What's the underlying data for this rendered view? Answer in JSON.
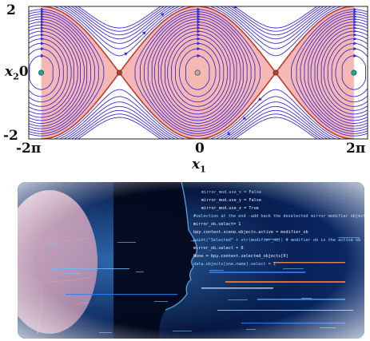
{
  "phase_plot": {
    "y_top_tick": "2",
    "y_bottom_tick": "-2",
    "y_axis_label": "x",
    "y_axis_sub": "2",
    "y_zero_tick": "0",
    "x_left_tick": "-2π",
    "x_mid_tick": "0",
    "x_right_tick": "2π",
    "x_axis_label": "x",
    "x_axis_sub": "1",
    "colors": {
      "stream": "#3b2bd6",
      "separatrix": "#c0392b",
      "fill": "#f2a6a0",
      "equilibrium": "#1aa7a0"
    }
  },
  "photo": {
    "subject": "ai-face-code-graphic",
    "code_lines": [
      "mirror_mod.use_x = False",
      "mirror_mod.use_y = False",
      "mirror_mod.use_z = True",
      "#selection at the end -add back the deselected mirror modifier object",
      "mirror_ob.select= 1",
      "bpy.context.scene.objects.active = modifier_ob",
      "print(\"Selected\" + str(modifier_ob)) # modifier ob is the active ob",
      "mirror_ob.select = 0",
      "None = bpy.context.selected_objects[0]",
      "data.objects[one.name].select = 1"
    ],
    "colors": {
      "bg": "#05102a",
      "glow": "#2a7fff",
      "accent": "#ff7a2a"
    }
  }
}
